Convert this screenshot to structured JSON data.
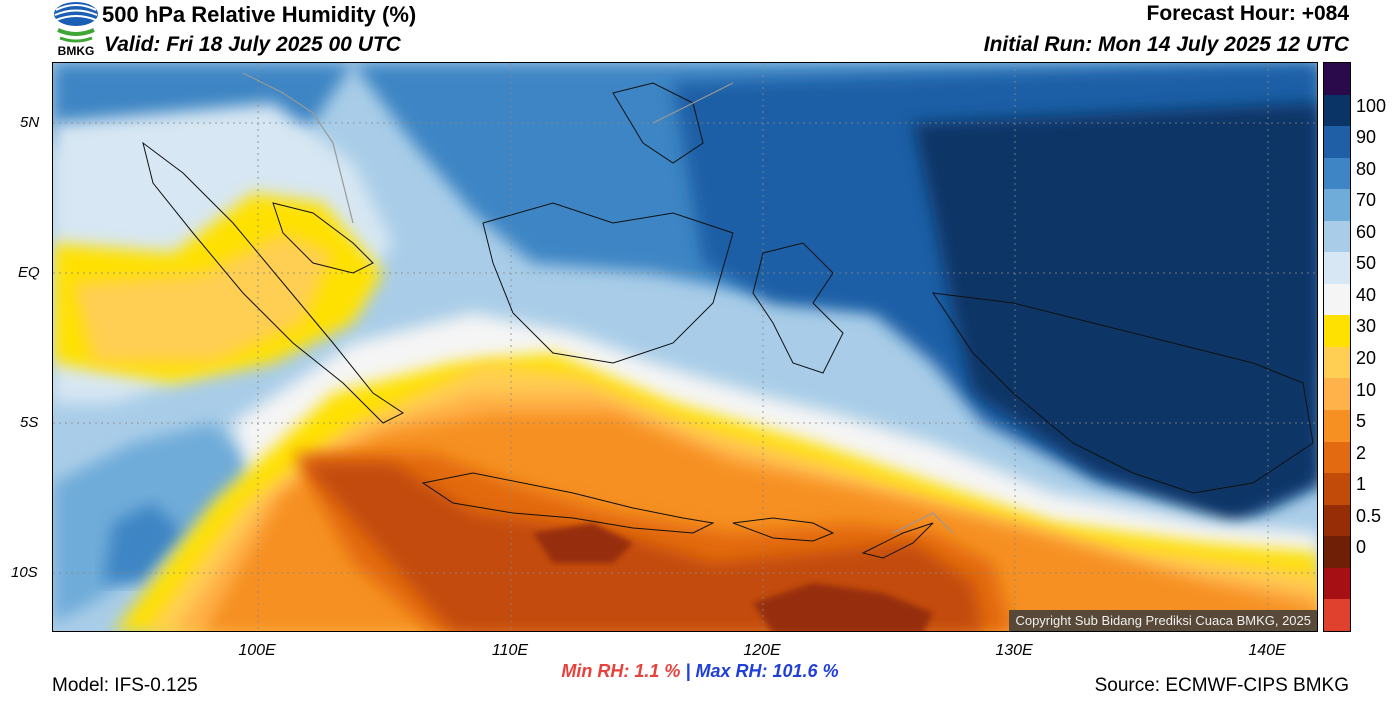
{
  "header": {
    "title": "500 hPa Relative Humidity (%)",
    "valid": "Valid: Fri 18 July 2025 00 UTC",
    "forecast_hour": "Forecast Hour: +084",
    "initial_run": "Initial Run: Mon 14 July 2025 12 UTC"
  },
  "logo": {
    "text": "BMKG",
    "icon": "bmkg-logo-icon"
  },
  "map": {
    "lat_labels": [
      "5N",
      "EQ",
      "5S",
      "10S"
    ],
    "lon_labels": [
      "100E",
      "110E",
      "120E",
      "130E",
      "140E"
    ],
    "copyright": "Copyright Sub Bidang Prediksi Cuaca BMKG, 2025"
  },
  "colorbar": {
    "levels": [
      "100",
      "90",
      "80",
      "70",
      "60",
      "50",
      "40",
      "30",
      "20",
      "10",
      "5",
      "2",
      "1",
      "0.5",
      "0"
    ],
    "colors": [
      "#2a0a4a",
      "#0b3466",
      "#1f5fa6",
      "#3d85c4",
      "#70acd9",
      "#a9cde8",
      "#d7e7f3",
      "#f5f5f5",
      "#ffe100",
      "#ffcf53",
      "#ffb14a",
      "#f69022",
      "#e36a11",
      "#c24b0a",
      "#962d07",
      "#6e1f05",
      "#a61014",
      "#e0402e"
    ]
  },
  "stats": {
    "min": "Min RH:   1.1 %",
    "separator": "|",
    "max": "Max RH: 101.6 %"
  },
  "footer": {
    "model": "Model: IFS-0.125",
    "source": "Source: ECMWF-CIPS BMKG"
  }
}
